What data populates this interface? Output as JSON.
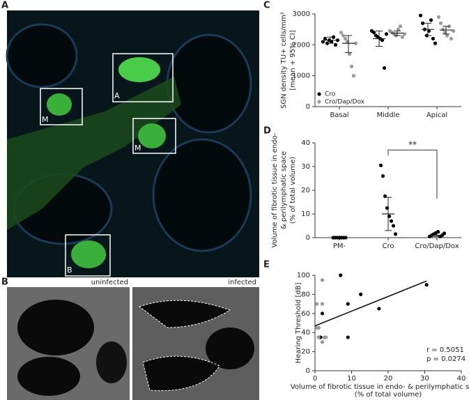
{
  "figure": {
    "panel_labels": [
      "A",
      "B",
      "C",
      "D",
      "E"
    ],
    "image_a_regions": [
      "M",
      "A",
      "M",
      "B"
    ],
    "image_b_captions": [
      "uninfected",
      "infected"
    ]
  },
  "chart_data": [
    {
      "type": "dotplot",
      "y_label": [
        "SGN density  TU+ cells/mm²",
        "[mean + 95% CI]"
      ],
      "categories": [
        "Basal",
        "Middle",
        "Apical"
      ],
      "ylim": [
        0,
        3000
      ],
      "yticks": [
        0,
        1000,
        2000,
        3000
      ],
      "series": [
        {
          "name": "Cro",
          "color": "#000000",
          "values": [
            [
              2100,
              2200,
              2050,
              2150,
              2100,
              2250,
              2000,
              2150
            ],
            [
              2450,
              2400,
              2300,
              2250,
              2200,
              2150,
              1250,
              2350
            ],
            [
              2950,
              2700,
              2500,
              2300,
              2450,
              2800,
              2200,
              2050
            ]
          ],
          "mean": [
            2150,
            2200,
            2500
          ],
          "ci": [
            [
              2050,
              2250
            ],
            [
              1950,
              2450
            ],
            [
              2300,
              2700
            ]
          ]
        },
        {
          "name": "Cro/Dap/Dox",
          "color": "#999999",
          "values": [
            [
              2400,
              2300,
              2200,
              2100,
              1700,
              1300,
              1000,
              2050
            ],
            [
              2450,
              2400,
              2350,
              2300,
              2500,
              2600,
              2250,
              2350
            ],
            [
              2900,
              2700,
              2500,
              2400,
              2300,
              2600,
              2200,
              2450
            ]
          ],
          "mean": [
            2050,
            2380,
            2480
          ],
          "ci": [
            [
              1750,
              2300
            ],
            [
              2300,
              2450
            ],
            [
              2350,
              2600
            ]
          ]
        }
      ]
    },
    {
      "type": "dotplot",
      "y_label": [
        "Volume of  fibrotic tissue in endo-",
        "& perilymphatic space",
        "(% of total volume)"
      ],
      "categories": [
        "PM-",
        "Cro",
        "Cro/Dap/Dox"
      ],
      "ylim": [
        0,
        40
      ],
      "yticks": [
        0,
        10,
        20,
        30,
        40
      ],
      "series": [
        {
          "color": "#000000",
          "values": [
            [
              0,
              0,
              0,
              0,
              0,
              0,
              0
            ],
            [
              30.5,
              26,
              17.5,
              12.5,
              9,
              7,
              5,
              1.5
            ],
            [
              0.5,
              1,
              1.5,
              2,
              2.5,
              0.5,
              1,
              1.8
            ]
          ],
          "mean": [
            null,
            10,
            1
          ],
          "ci": [
            [
              null,
              null
            ],
            [
              3,
              17
            ],
            [
              0.5,
              2
            ]
          ]
        }
      ],
      "significance": {
        "label": "**",
        "categories": [
          1,
          2
        ],
        "y": 37
      }
    },
    {
      "type": "scatter",
      "y_label": "Hearing Threshold   [dB]",
      "x_label": [
        "Volume of fibrotic tissue in endo- & perilymphatic space",
        "(% of total volume)"
      ],
      "xlim": [
        0,
        40
      ],
      "xticks": [
        0,
        10,
        20,
        30,
        40
      ],
      "ylim": [
        0,
        100
      ],
      "yticks": [
        0,
        20,
        40,
        60,
        80,
        100
      ],
      "series": [
        {
          "color": "#000000",
          "x": [
            7,
            12.5,
            9,
            17.5,
            30.5,
            9,
            2,
            1.5,
            1
          ],
          "values": [
            100,
            80,
            70,
            65,
            90,
            35,
            60,
            35,
            35
          ]
        },
        {
          "color": "#999999",
          "x": [
            0.5,
            2,
            2,
            0.5,
            1,
            2.5,
            2,
            3,
            1
          ],
          "values": [
            70,
            70,
            95,
            45,
            35,
            35,
            30,
            35,
            45
          ]
        }
      ],
      "fit": {
        "x": [
          0,
          30.5
        ],
        "values": [
          47,
          94
        ]
      },
      "annotations": [
        "r  = 0.5051",
        "p  = 0.0274"
      ]
    }
  ]
}
